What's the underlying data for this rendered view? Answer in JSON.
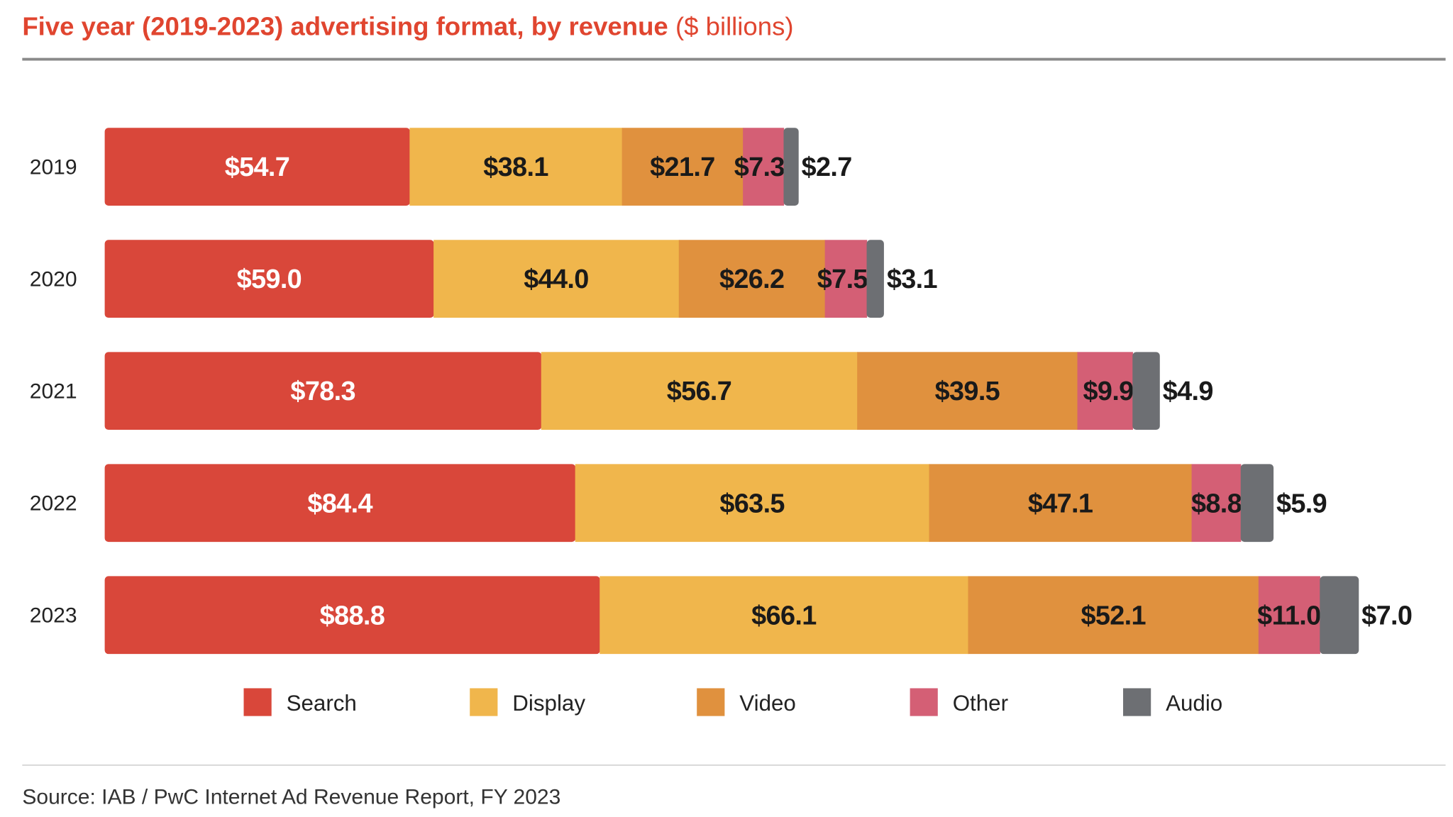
{
  "chart_data": {
    "type": "bar",
    "orientation": "horizontal",
    "stacked": true,
    "title": "Five year (2019-2023) advertising format, by revenue",
    "title_unit": "($ billions)",
    "source": "Source: IAB / PwC Internet Ad Revenue Report, FY 2023",
    "categories": [
      "2019",
      "2020",
      "2021",
      "2022",
      "2023"
    ],
    "series": [
      {
        "name": "Search",
        "color": "#d9473a",
        "label_color": "#ffffff",
        "values": [
          54.7,
          59.0,
          78.3,
          84.4,
          88.8
        ],
        "labels": [
          "$54.7",
          "$59.0",
          "$78.3",
          "$84.4",
          "$88.8"
        ]
      },
      {
        "name": "Display",
        "color": "#f0b64c",
        "label_color": "#1a1a1a",
        "values": [
          38.1,
          44.0,
          56.7,
          63.5,
          66.1
        ],
        "labels": [
          "$38.1",
          "$44.0",
          "$56.7",
          "$63.5",
          "$66.1"
        ]
      },
      {
        "name": "Video",
        "color": "#e0913e",
        "label_color": "#1a1a1a",
        "values": [
          21.7,
          26.2,
          39.5,
          47.1,
          52.1
        ],
        "labels": [
          "$21.7",
          "$26.2",
          "$39.5",
          "$47.1",
          "$52.1"
        ]
      },
      {
        "name": "Other",
        "color": "#d45f75",
        "label_color": "#1a1a1a",
        "values": [
          7.3,
          7.5,
          9.9,
          8.8,
          11.0
        ],
        "labels": [
          "$7.3",
          "$7.5",
          "$9.9",
          "$8.8",
          "$11.0"
        ]
      },
      {
        "name": "Audio",
        "color": "#6d6f73",
        "label_color": "#1a1a1a",
        "values": [
          2.7,
          3.1,
          4.9,
          5.9,
          7.0
        ],
        "labels": [
          "$2.7",
          "$3.1",
          "$4.9",
          "$5.9",
          "$7.0"
        ]
      }
    ],
    "legend": "bottom",
    "grid": false,
    "title_color": "#e0452f"
  }
}
